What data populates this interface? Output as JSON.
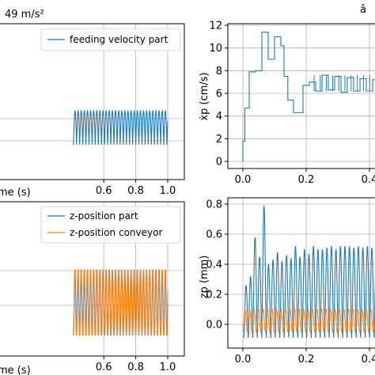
{
  "colors": {
    "blue": "#1f77b4",
    "orange": "#ff7f0e"
  },
  "chart_data": [
    {
      "type": "line",
      "panel": "top-left",
      "title": "49 m/s²",
      "xlabel": "me (s)",
      "ylabel": "",
      "xlim": [
        0.0,
        1.0
      ],
      "xticks": [
        0.6,
        0.8,
        1.0
      ],
      "xtick_labels": [
        "0.6",
        "0.8",
        "1.0"
      ],
      "grid": true,
      "legend": "top-right",
      "series": [
        {
          "name": "feeding velocity part",
          "color": "#1f77b4",
          "wave": {
            "x_start": 0.41,
            "x_end": 1.0,
            "period": 0.0195,
            "low": 0.0,
            "high": 1.0
          }
        }
      ]
    },
    {
      "type": "line",
      "panel": "top-right",
      "title": "â",
      "xlabel": "",
      "ylabel": "ẋp (cm/s)",
      "xlim": [
        -0.03,
        0.45
      ],
      "ylim": [
        -0.5,
        12.5
      ],
      "xticks": [
        0.0,
        0.2,
        0.4
      ],
      "xtick_labels": [
        "0.0",
        "0.2",
        "0.4"
      ],
      "yticks": [
        0,
        2,
        4,
        6,
        8,
        10,
        12
      ],
      "ytick_labels": [
        "0",
        "2",
        "4",
        "6",
        "8",
        "10",
        "12"
      ],
      "grid": true,
      "series": [
        {
          "color": "#1f77b4",
          "x": [
            0.0,
            0.0,
            0.006,
            0.006,
            0.02,
            0.02,
            0.04,
            0.04,
            0.06,
            0.06,
            0.08,
            0.08,
            0.1,
            0.1,
            0.12,
            0.12,
            0.13,
            0.13,
            0.142,
            0.142,
            0.16,
            0.16,
            0.19,
            0.19,
            0.21,
            0.21,
            0.23,
            0.23,
            0.25,
            0.25,
            0.27,
            0.27,
            0.29,
            0.29,
            0.31,
            0.31,
            0.33,
            0.33,
            0.35,
            0.35,
            0.37,
            0.37,
            0.39,
            0.39,
            0.41,
            0.41,
            0.43,
            0.43,
            0.45
          ],
          "y": [
            0.0,
            1.8,
            1.8,
            4.7,
            4.7,
            7.9,
            7.9,
            8.0,
            8.0,
            11.4,
            11.4,
            9.0,
            9.0,
            11.0,
            11.0,
            10.2,
            10.2,
            7.5,
            7.5,
            5.4,
            5.4,
            4.3,
            4.3,
            6.7,
            6.7,
            7.0,
            7.0,
            6.2,
            6.2,
            7.6,
            7.6,
            6.3,
            6.3,
            7.5,
            7.5,
            6.1,
            6.1,
            7.4,
            7.4,
            6.2,
            6.2,
            7.3,
            7.3,
            6.2,
            6.2,
            7.2,
            7.2,
            6.1,
            6.1
          ],
          "spikes": {
            "x_start": 0.225,
            "x_end": 0.45,
            "period": 0.0195,
            "base": 6.2,
            "peak": 7.6
          }
        }
      ]
    },
    {
      "type": "line",
      "panel": "bottom-left",
      "title": "",
      "xlabel": "me (s)",
      "ylabel": "",
      "xlim": [
        0.0,
        1.0
      ],
      "xticks": [
        0.6,
        0.8,
        1.0
      ],
      "xtick_labels": [
        "0.6",
        "0.8",
        "1.0"
      ],
      "grid": true,
      "legend": "top-right",
      "series": [
        {
          "name": "z-position part",
          "color": "#1f77b4",
          "wave": {
            "x_start": 0.41,
            "x_end": 1.0,
            "period": 0.0195,
            "low": 0.0,
            "high": 1.0
          }
        },
        {
          "name": "z-position conveyor",
          "color": "#ff7f0e",
          "wave": {
            "x_start": 0.41,
            "x_end": 1.0,
            "period": 0.0195,
            "low": 0.0,
            "high": 1.0
          }
        }
      ]
    },
    {
      "type": "line",
      "panel": "bottom-right",
      "title": "",
      "xlabel": "",
      "ylabel": "zp (mm)",
      "xlim": [
        -0.03,
        0.45
      ],
      "ylim": [
        -0.12,
        0.82
      ],
      "xticks": [
        0.0,
        0.2,
        0.4
      ],
      "xtick_labels": [
        "0.0",
        "0.2",
        "0.4"
      ],
      "yticks": [
        0.0,
        0.2,
        0.4,
        0.6,
        0.8
      ],
      "ytick_labels": [
        "0.0",
        "0.2",
        "0.4",
        "0.6",
        "0.8"
      ],
      "grid": true,
      "series": [
        {
          "color": "#1f77b4",
          "peaks": [
            0.26,
            0.32,
            0.58,
            0.45,
            0.79,
            0.4,
            0.43,
            0.48,
            0.42,
            0.46,
            0.44,
            0.52,
            0.45,
            0.5,
            0.47,
            0.52,
            0.5,
            0.5,
            0.51,
            0.52,
            0.5,
            0.52,
            0.52,
            0.52,
            0.51,
            0.52,
            0.51,
            0.52,
            0.51,
            0.52,
            0.51,
            0.51,
            0.5,
            0.5,
            0.51
          ],
          "peak_x_start": 0.01,
          "period": 0.0142,
          "low": -0.09
        },
        {
          "color": "#ff7f0e",
          "wave": {
            "x_start": 0.0,
            "x_end": 0.45,
            "period": 0.0142,
            "low": -0.05,
            "high": 0.1
          }
        }
      ]
    }
  ]
}
